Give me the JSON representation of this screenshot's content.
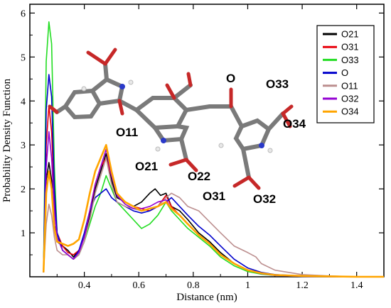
{
  "chart_data": {
    "type": "line",
    "title": "",
    "xlabel": "Distance (nm)",
    "ylabel": "Probability Density Function",
    "xlim": [
      0.2,
      1.5
    ],
    "ylim": [
      0,
      6.2
    ],
    "x_ticks": [
      "0.4",
      "0.6",
      "0.8",
      "1",
      "1.2",
      "1.4"
    ],
    "x_tick_values": [
      0.4,
      0.6,
      0.8,
      1.0,
      1.2,
      1.4
    ],
    "y_ticks": [
      "1",
      "2",
      "3",
      "4",
      "5",
      "6"
    ],
    "y_tick_values": [
      1,
      2,
      3,
      4,
      5,
      6
    ],
    "grid": false,
    "legend_position": "top-right",
    "series": [
      {
        "name": "O21",
        "color": "#000000",
        "x": [
          0.25,
          0.26,
          0.27,
          0.28,
          0.29,
          0.3,
          0.32,
          0.34,
          0.36,
          0.38,
          0.4,
          0.42,
          0.44,
          0.46,
          0.48,
          0.5,
          0.52,
          0.55,
          0.58,
          0.61,
          0.64,
          0.66,
          0.68,
          0.7,
          0.72,
          0.75,
          0.78,
          0.82,
          0.86,
          0.9,
          0.95,
          1.0,
          1.05,
          1.1,
          1.2,
          1.3,
          1.4,
          1.5
        ],
        "y": [
          0.1,
          2.2,
          2.6,
          2.2,
          1.2,
          0.8,
          0.7,
          0.6,
          0.45,
          0.6,
          0.9,
          1.4,
          2.0,
          2.4,
          2.8,
          2.2,
          1.8,
          1.7,
          1.6,
          1.7,
          1.9,
          2.0,
          1.85,
          1.9,
          1.6,
          1.5,
          1.3,
          1.0,
          0.8,
          0.55,
          0.3,
          0.15,
          0.08,
          0.04,
          0.02,
          0.01,
          0.0,
          0.0
        ]
      },
      {
        "name": "O31",
        "color": "#e8000b",
        "x": [
          0.25,
          0.26,
          0.27,
          0.28,
          0.29,
          0.3,
          0.32,
          0.34,
          0.36,
          0.38,
          0.4,
          0.42,
          0.44,
          0.46,
          0.48,
          0.5,
          0.52,
          0.55,
          0.58,
          0.61,
          0.64,
          0.67,
          0.7,
          0.72,
          0.75,
          0.78,
          0.82,
          0.86,
          0.9,
          0.95,
          1.0,
          1.05,
          1.1,
          1.2,
          1.3,
          1.4,
          1.5
        ],
        "y": [
          0.1,
          3.0,
          3.9,
          3.3,
          1.8,
          1.0,
          0.7,
          0.55,
          0.5,
          0.6,
          0.9,
          1.5,
          2.1,
          2.5,
          2.7,
          2.3,
          1.9,
          1.7,
          1.6,
          1.55,
          1.5,
          1.6,
          1.85,
          1.6,
          1.4,
          1.2,
          0.95,
          0.75,
          0.5,
          0.3,
          0.15,
          0.08,
          0.04,
          0.02,
          0.01,
          0.0,
          0.0
        ]
      },
      {
        "name": "O33",
        "color": "#22dd22",
        "x": [
          0.25,
          0.26,
          0.27,
          0.28,
          0.29,
          0.3,
          0.32,
          0.34,
          0.36,
          0.38,
          0.4,
          0.42,
          0.44,
          0.46,
          0.48,
          0.5,
          0.52,
          0.55,
          0.58,
          0.61,
          0.64,
          0.67,
          0.7,
          0.72,
          0.75,
          0.78,
          0.82,
          0.86,
          0.9,
          0.95,
          1.0,
          1.05,
          1.1,
          1.2,
          1.3,
          1.4,
          1.5
        ],
        "y": [
          0.1,
          4.9,
          5.8,
          5.3,
          2.5,
          1.0,
          0.6,
          0.5,
          0.4,
          0.5,
          0.8,
          1.2,
          1.6,
          1.9,
          2.3,
          2.0,
          1.7,
          1.5,
          1.3,
          1.1,
          1.2,
          1.4,
          1.7,
          1.5,
          1.3,
          1.1,
          0.9,
          0.7,
          0.45,
          0.25,
          0.12,
          0.06,
          0.03,
          0.01,
          0.0,
          0.0,
          0.0
        ]
      },
      {
        "name": "O",
        "color": "#0000cc",
        "x": [
          0.25,
          0.26,
          0.27,
          0.28,
          0.29,
          0.3,
          0.32,
          0.34,
          0.36,
          0.38,
          0.4,
          0.42,
          0.44,
          0.46,
          0.48,
          0.5,
          0.52,
          0.55,
          0.58,
          0.61,
          0.64,
          0.67,
          0.7,
          0.72,
          0.75,
          0.78,
          0.82,
          0.86,
          0.9,
          0.95,
          1.0,
          1.05,
          1.1,
          1.2,
          1.3,
          1.4,
          1.5
        ],
        "y": [
          0.1,
          3.8,
          4.6,
          4.1,
          2.0,
          1.0,
          0.6,
          0.5,
          0.4,
          0.6,
          1.0,
          1.5,
          1.8,
          1.9,
          2.0,
          1.8,
          1.7,
          1.6,
          1.5,
          1.45,
          1.5,
          1.6,
          1.7,
          1.8,
          1.6,
          1.4,
          1.15,
          0.95,
          0.7,
          0.4,
          0.2,
          0.1,
          0.05,
          0.02,
          0.01,
          0.0,
          0.0
        ]
      },
      {
        "name": "O11",
        "color": "#bc8f8f",
        "x": [
          0.25,
          0.26,
          0.27,
          0.28,
          0.29,
          0.3,
          0.32,
          0.34,
          0.36,
          0.38,
          0.4,
          0.42,
          0.44,
          0.46,
          0.48,
          0.5,
          0.52,
          0.55,
          0.58,
          0.61,
          0.64,
          0.67,
          0.7,
          0.72,
          0.75,
          0.78,
          0.82,
          0.86,
          0.9,
          0.95,
          1.0,
          1.03,
          1.05,
          1.1,
          1.2,
          1.3,
          1.4,
          1.5
        ],
        "y": [
          0.1,
          1.2,
          1.65,
          1.4,
          0.9,
          0.6,
          0.5,
          0.5,
          0.4,
          0.5,
          0.8,
          1.3,
          1.9,
          2.3,
          2.7,
          2.1,
          1.7,
          1.6,
          1.55,
          1.5,
          1.55,
          1.6,
          1.8,
          1.9,
          1.8,
          1.6,
          1.5,
          1.25,
          1.0,
          0.7,
          0.55,
          0.45,
          0.3,
          0.15,
          0.05,
          0.02,
          0.0,
          0.0
        ]
      },
      {
        "name": "O32",
        "color": "#9400d3",
        "x": [
          0.25,
          0.26,
          0.27,
          0.28,
          0.29,
          0.3,
          0.32,
          0.34,
          0.36,
          0.38,
          0.4,
          0.42,
          0.44,
          0.46,
          0.48,
          0.5,
          0.52,
          0.55,
          0.58,
          0.61,
          0.64,
          0.67,
          0.7,
          0.72,
          0.75,
          0.78,
          0.82,
          0.86,
          0.9,
          0.95,
          1.0,
          1.05,
          1.1,
          1.2,
          1.3,
          1.4,
          1.5
        ],
        "y": [
          0.1,
          2.5,
          3.3,
          2.7,
          1.5,
          0.9,
          0.6,
          0.5,
          0.4,
          0.55,
          0.9,
          1.5,
          2.1,
          2.5,
          2.9,
          2.3,
          1.85,
          1.65,
          1.55,
          1.55,
          1.6,
          1.7,
          1.75,
          1.55,
          1.4,
          1.2,
          0.95,
          0.75,
          0.5,
          0.3,
          0.15,
          0.07,
          0.03,
          0.01,
          0.0,
          0.0,
          0.0
        ]
      },
      {
        "name": "O34",
        "color": "#ffa500",
        "x": [
          0.25,
          0.26,
          0.27,
          0.28,
          0.29,
          0.3,
          0.32,
          0.34,
          0.36,
          0.38,
          0.4,
          0.42,
          0.44,
          0.46,
          0.48,
          0.5,
          0.52,
          0.55,
          0.58,
          0.61,
          0.64,
          0.67,
          0.7,
          0.72,
          0.75,
          0.78,
          0.82,
          0.86,
          0.9,
          0.95,
          1.0,
          1.05,
          1.1,
          1.2,
          1.3,
          1.4,
          1.5
        ],
        "y": [
          0.1,
          1.9,
          2.4,
          2.0,
          1.1,
          0.8,
          0.75,
          0.7,
          0.75,
          0.85,
          1.3,
          1.9,
          2.4,
          2.7,
          3.0,
          2.4,
          1.9,
          1.7,
          1.6,
          1.5,
          1.55,
          1.6,
          1.7,
          1.55,
          1.4,
          1.2,
          0.95,
          0.75,
          0.5,
          0.3,
          0.15,
          0.08,
          0.04,
          0.02,
          0.01,
          0.0,
          0.0
        ]
      }
    ],
    "molecule_labels": [
      "O",
      "O33",
      "O34",
      "O11",
      "O21",
      "O22",
      "O31",
      "O32"
    ]
  }
}
